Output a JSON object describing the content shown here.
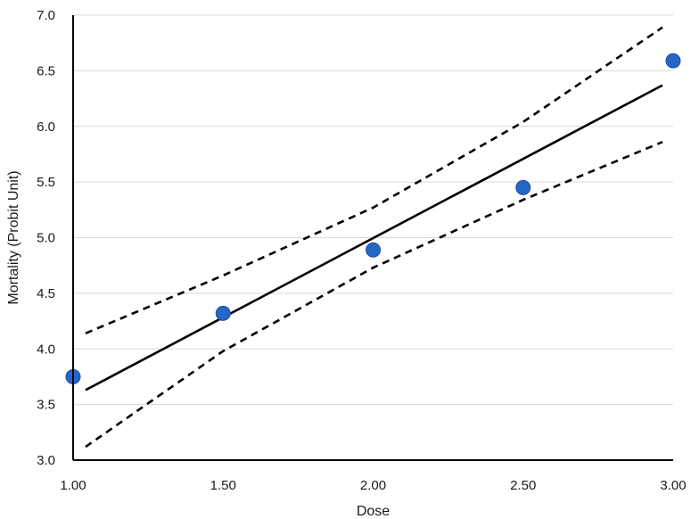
{
  "chart_data": {
    "type": "scatter",
    "title": "",
    "xlabel": "Dose",
    "ylabel": "Mortality (Probit Unit)",
    "xlim": [
      1.0,
      3.0
    ],
    "ylim": [
      3.0,
      7.0
    ],
    "x_ticks": [
      "1.00",
      "1.50",
      "2.00",
      "2.50",
      "3.00"
    ],
    "y_ticks": [
      "3.0",
      "3.5",
      "4.0",
      "4.5",
      "5.0",
      "5.5",
      "6.0",
      "6.5",
      "7.0"
    ],
    "grid": "horizontal",
    "legend": "none",
    "colors": {
      "points": "#2566c7",
      "point_edge": "#1d4f9c",
      "fit_line": "#000000",
      "confidence_band": "#000000",
      "grid": "#d9d9d9",
      "axis": "#000000"
    },
    "series": [
      {
        "type": "scatter",
        "x": [
          1.0,
          1.5,
          2.0,
          2.5,
          3.0
        ],
        "y": [
          3.75,
          4.32,
          4.89,
          5.45,
          6.59
        ]
      },
      {
        "type": "line",
        "style": "solid",
        "x": [
          1.0,
          3.0
        ],
        "y": [
          3.63,
          6.37
        ]
      },
      {
        "type": "line",
        "style": "dashed",
        "x": [
          1.0,
          1.5,
          2.0,
          2.5,
          3.0
        ],
        "y": [
          4.14,
          4.66,
          5.27,
          6.04,
          6.89
        ]
      },
      {
        "type": "line",
        "style": "dashed",
        "x": [
          1.0,
          1.5,
          2.0,
          2.5,
          3.0
        ],
        "y": [
          3.12,
          3.98,
          4.73,
          5.34,
          5.86
        ]
      }
    ]
  }
}
